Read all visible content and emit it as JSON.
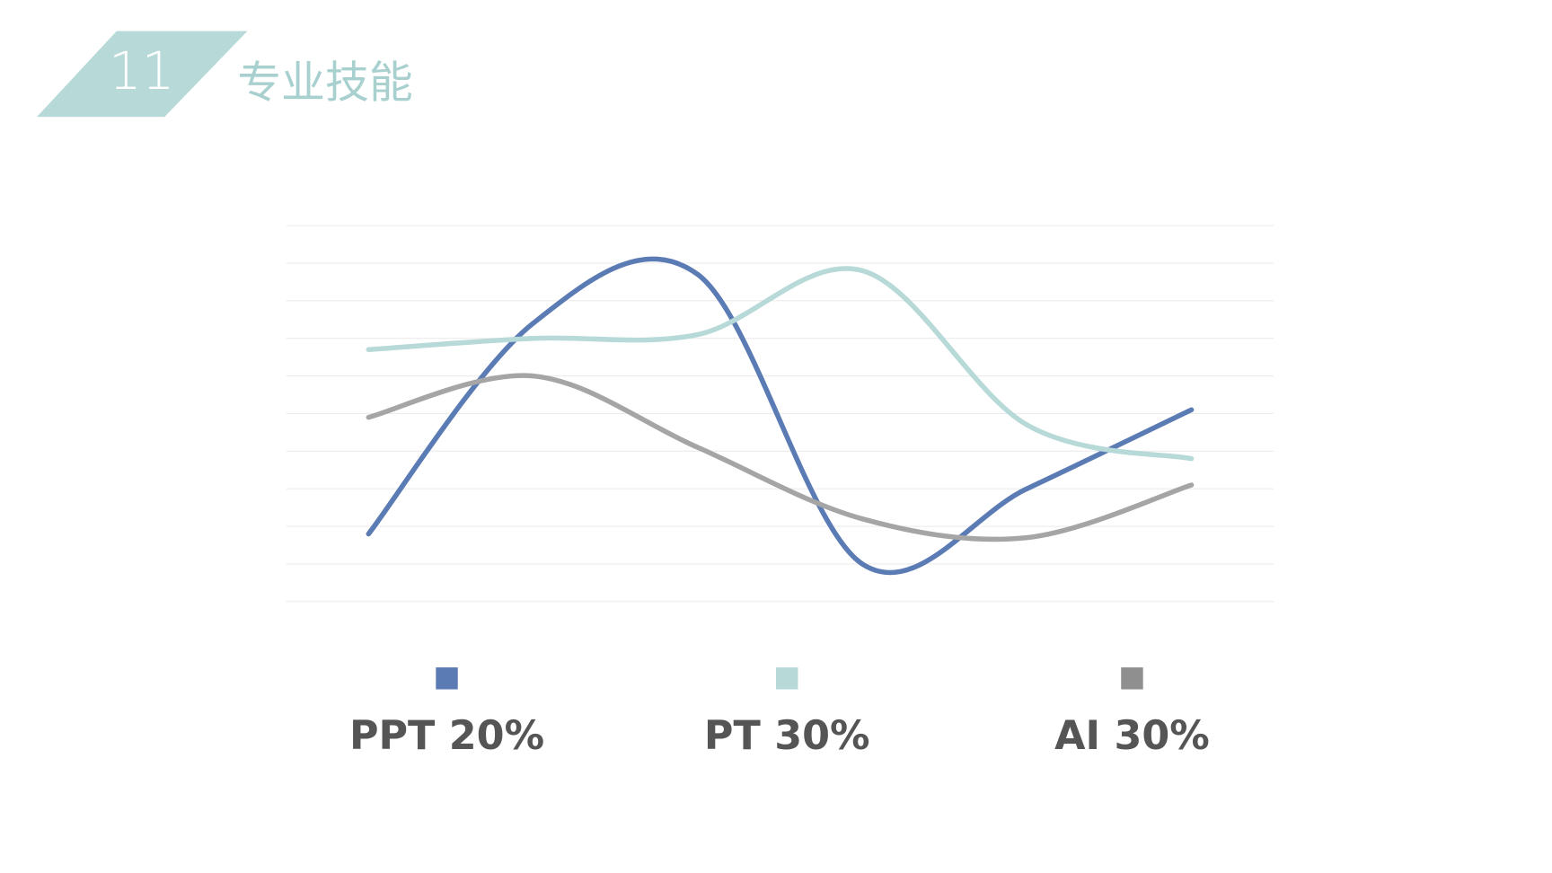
{
  "header": {
    "number": "11",
    "title": "专业技能"
  },
  "chart_data": {
    "type": "line",
    "smooth": true,
    "categories": [
      null,
      null,
      null,
      null,
      null,
      null
    ],
    "series": [
      {
        "name": "PPT 20%",
        "color": "#5b7bb4",
        "values": [
          1.8,
          7.4,
          8.7,
          1.0,
          3.0,
          5.1
        ]
      },
      {
        "name": "PT 30%",
        "color": "#b7d9d8",
        "values": [
          6.7,
          7.0,
          7.1,
          8.8,
          4.7,
          3.8
        ]
      },
      {
        "name": "AI 30%",
        "color": "#a5a5a5",
        "values": [
          4.9,
          6.0,
          4.1,
          2.2,
          1.7,
          3.1
        ]
      }
    ],
    "legend_colors": [
      "#5b7bb4",
      "#b7d9d8",
      "#8f8f8f"
    ],
    "ylim": [
      0,
      10
    ],
    "yticks": [
      0,
      1,
      2,
      3,
      4,
      5,
      6,
      7,
      8,
      9,
      10
    ],
    "grid": true,
    "legend": "bottom"
  }
}
